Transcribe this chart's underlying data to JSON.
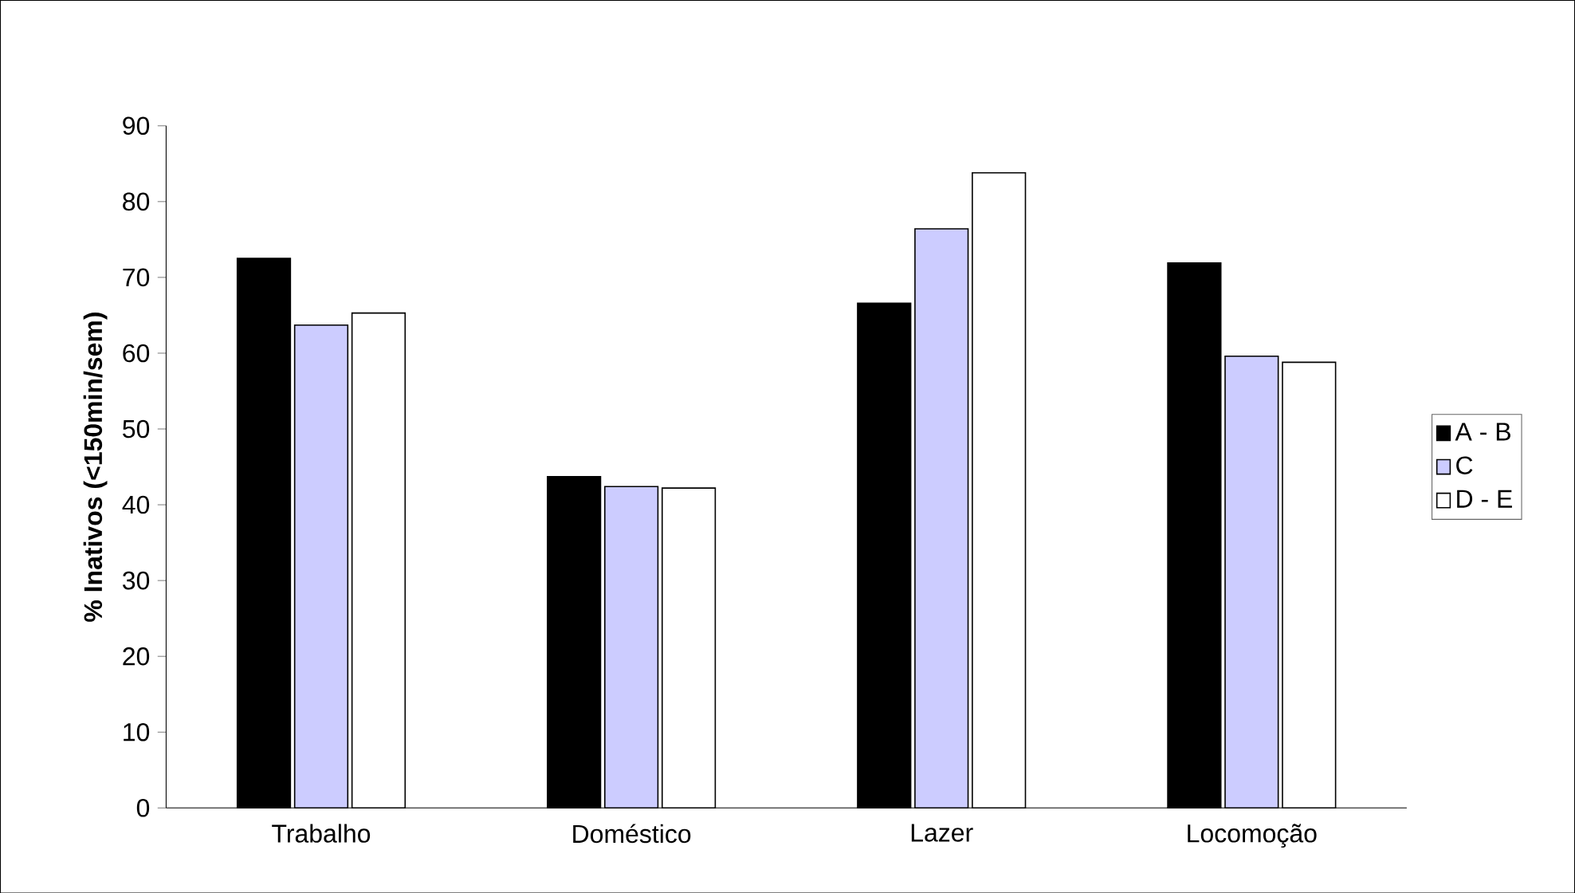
{
  "chart_data": {
    "type": "bar",
    "ylabel": "% Inativos (<150min/sem)",
    "categories": [
      "Trabalho",
      "Doméstico",
      "Lazer",
      "Locomoção"
    ],
    "series": [
      {
        "name": "A - B",
        "color": "#000000",
        "values": [
          72.5,
          43.7,
          66.6,
          71.9
        ]
      },
      {
        "name": "C",
        "color": "#ccccff",
        "values": [
          63.7,
          42.4,
          76.4,
          59.6
        ]
      },
      {
        "name": "D - E",
        "color": "#ffffff",
        "values": [
          65.3,
          42.2,
          83.8,
          58.8
        ]
      }
    ],
    "ylim": [
      0,
      90
    ],
    "yticks": [
      0,
      10,
      20,
      30,
      40,
      50,
      60,
      70,
      80,
      90
    ],
    "grid": false,
    "legend": "right"
  }
}
